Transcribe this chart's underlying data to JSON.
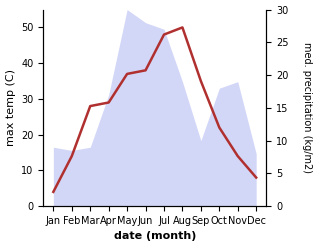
{
  "months": [
    "Jan",
    "Feb",
    "Mar",
    "Apr",
    "May",
    "Jun",
    "Jul",
    "Aug",
    "Sep",
    "Oct",
    "Nov",
    "Dec"
  ],
  "temperature": [
    4,
    14,
    28,
    29,
    37,
    38,
    48,
    50,
    35,
    22,
    14,
    8
  ],
  "precipitation": [
    9,
    8.5,
    9,
    17,
    30,
    28,
    27,
    19,
    10,
    18,
    19,
    8
  ],
  "temp_color": "#b03030",
  "precip_fill_color": "#c5caf5",
  "precip_line_color": "#b0b8ee",
  "precip_alpha": 0.75,
  "temp_linewidth": 1.8,
  "xlabel": "date (month)",
  "ylabel_left": "max temp (C)",
  "ylabel_right": "med. precipitation (kg/m2)",
  "ylim_left": [
    0,
    55
  ],
  "ylim_right": [
    0,
    30
  ],
  "yticks_left": [
    0,
    10,
    20,
    30,
    40,
    50
  ],
  "yticks_right": [
    0,
    5,
    10,
    15,
    20,
    25,
    30
  ],
  "background_color": "#ffffff"
}
